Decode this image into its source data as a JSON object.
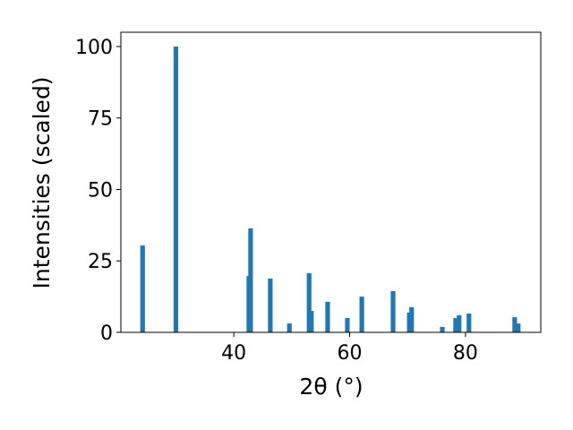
{
  "chart_data": {
    "type": "bar",
    "x_label": "2θ (°)",
    "y_label": "Intensities (scaled)",
    "x": [
      24.25,
      30.0,
      42.6,
      42.9,
      46.3,
      49.6,
      53.0,
      53.4,
      56.2,
      59.6,
      62.1,
      67.5,
      70.3,
      70.7,
      76.0,
      78.3,
      78.9,
      80.6,
      88.5,
      89.1
    ],
    "values": [
      30.4,
      100,
      19.7,
      36.4,
      18.8,
      3.1,
      20.7,
      7.5,
      10.7,
      5.0,
      12.5,
      14.4,
      6.9,
      8.8,
      1.9,
      5.0,
      6.0,
      6.6,
      5.3,
      3.1
    ],
    "color": "#1f77b4",
    "xlim": [
      20.5,
      93.0
    ],
    "xticks": [
      40,
      60,
      80
    ],
    "ylim": [
      0,
      105
    ],
    "yticks": [
      0,
      25,
      50,
      75,
      100
    ]
  }
}
